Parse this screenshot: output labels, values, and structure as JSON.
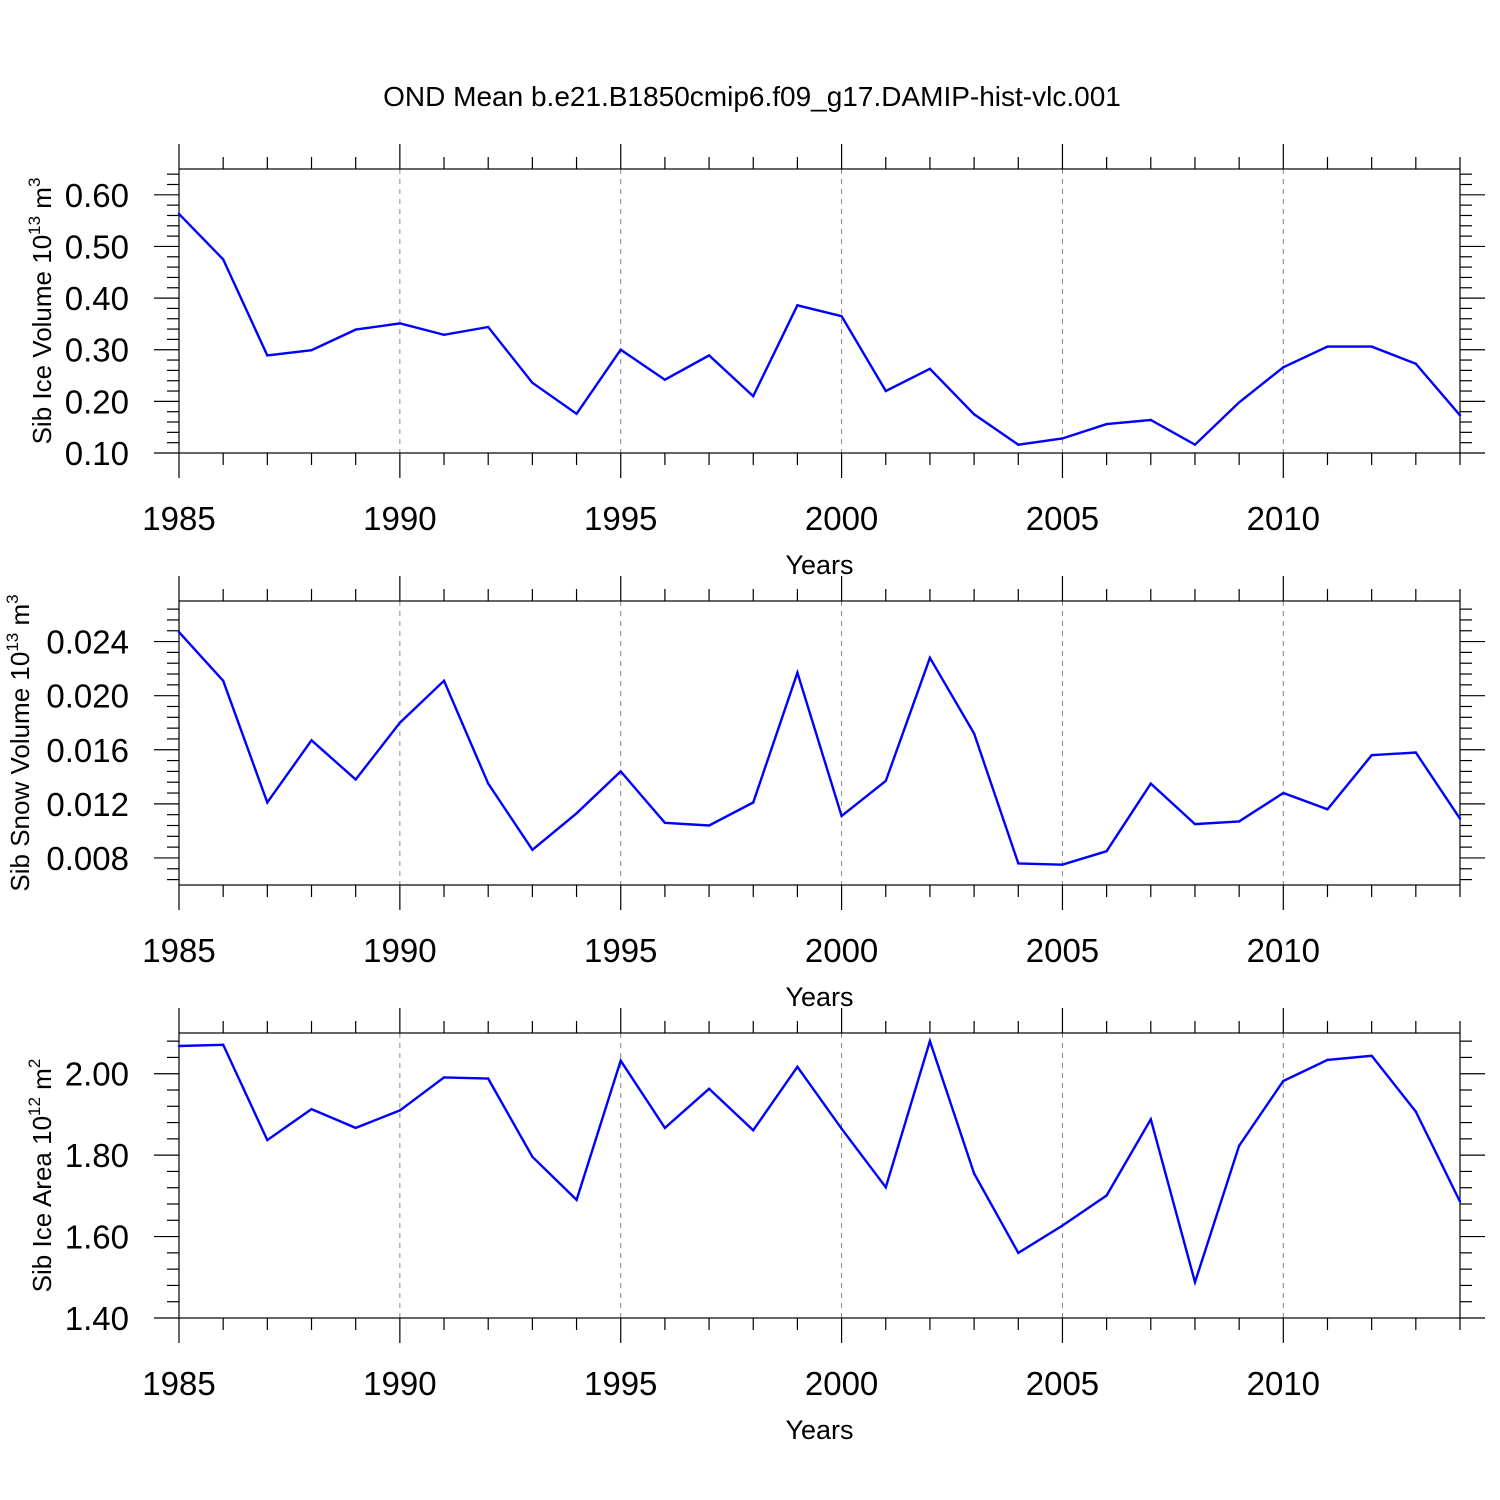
{
  "title": "OND Mean b.e21.B1850cmip6.f09_g17.DAMIP-hist-vlc.001",
  "colors": {
    "series": "#0000ff",
    "axis": "#000000",
    "grid": "#888888"
  },
  "chart_data": [
    {
      "type": "line",
      "title": "OND Mean b.e21.B1850cmip6.f09_g17.DAMIP-hist-vlc.001",
      "xlabel": "Years",
      "ylabel": "Sib Ice Volume 10",
      "ylabel_exp": "13",
      "ylabel_unit": " m",
      "ylabel_unit_exp": "3",
      "xlim": [
        1985,
        2014
      ],
      "ylim": [
        0.1,
        0.65
      ],
      "yticks": [
        0.1,
        0.2,
        0.3,
        0.4,
        0.5,
        0.6
      ],
      "yticklabels": [
        "0.10",
        "0.20",
        "0.30",
        "0.40",
        "0.50",
        "0.60"
      ],
      "xticks": [
        1985,
        1990,
        1995,
        2000,
        2005,
        2010
      ],
      "xticklabels": [
        "1985",
        "1990",
        "1995",
        "2000",
        "2005",
        "2010"
      ],
      "grid": "vertical dashed at major x ticks",
      "x": [
        1985,
        1986,
        1987,
        1988,
        1989,
        1990,
        1991,
        1992,
        1993,
        1994,
        1995,
        1996,
        1997,
        1998,
        1999,
        2000,
        2001,
        2002,
        2003,
        2004,
        2005,
        2006,
        2007,
        2008,
        2009,
        2010,
        2011,
        2012,
        2013,
        2014
      ],
      "series": [
        {
          "name": "Sib Ice Volume",
          "values": [
            0.563,
            0.475,
            0.289,
            0.299,
            0.339,
            0.351,
            0.329,
            0.344,
            0.236,
            0.176,
            0.3,
            0.242,
            0.289,
            0.21,
            0.386,
            0.365,
            0.22,
            0.263,
            0.175,
            0.116,
            0.128,
            0.156,
            0.164,
            0.116,
            0.198,
            0.266,
            0.306,
            0.306,
            0.273,
            0.173
          ]
        }
      ]
    },
    {
      "type": "line",
      "xlabel": "Years",
      "ylabel": "Sib Snow Volume 10",
      "ylabel_exp": "13",
      "ylabel_unit": " m",
      "ylabel_unit_exp": "3",
      "xlim": [
        1985,
        2014
      ],
      "ylim": [
        0.006,
        0.027
      ],
      "yticks": [
        0.008,
        0.012,
        0.016,
        0.02,
        0.024
      ],
      "yticklabels": [
        "0.008",
        "0.012",
        "0.016",
        "0.020",
        "0.024"
      ],
      "xticks": [
        1985,
        1990,
        1995,
        2000,
        2005,
        2010
      ],
      "xticklabels": [
        "1985",
        "1990",
        "1995",
        "2000",
        "2005",
        "2010"
      ],
      "grid": "vertical dashed at major x ticks",
      "x": [
        1985,
        1986,
        1987,
        1988,
        1989,
        1990,
        1991,
        1992,
        1993,
        1994,
        1995,
        1996,
        1997,
        1998,
        1999,
        2000,
        2001,
        2002,
        2003,
        2004,
        2005,
        2006,
        2007,
        2008,
        2009,
        2010,
        2011,
        2012,
        2013,
        2014
      ],
      "series": [
        {
          "name": "Sib Snow Volume",
          "values": [
            0.0247,
            0.0211,
            0.0121,
            0.0167,
            0.0138,
            0.018,
            0.0211,
            0.0135,
            0.0086,
            0.0113,
            0.0144,
            0.0106,
            0.0104,
            0.0121,
            0.0217,
            0.0111,
            0.0137,
            0.0228,
            0.0172,
            0.0076,
            0.0075,
            0.0085,
            0.0135,
            0.0105,
            0.0107,
            0.0128,
            0.0116,
            0.0156,
            0.0158,
            0.0109
          ]
        }
      ]
    },
    {
      "type": "line",
      "xlabel": "Years",
      "ylabel": "Sib Ice Area 10",
      "ylabel_exp": "12",
      "ylabel_unit": " m",
      "ylabel_unit_exp": "2",
      "xlim": [
        1985,
        2014
      ],
      "ylim": [
        1.4,
        2.1
      ],
      "yticks": [
        1.4,
        1.6,
        1.8,
        2.0
      ],
      "yticklabels": [
        "1.40",
        "1.60",
        "1.80",
        "2.00"
      ],
      "xticks": [
        1985,
        1990,
        1995,
        2000,
        2005,
        2010
      ],
      "xticklabels": [
        "1985",
        "1990",
        "1995",
        "2000",
        "2005",
        "2010"
      ],
      "grid": "vertical dashed at major x ticks",
      "x": [
        1985,
        1986,
        1987,
        1988,
        1989,
        1990,
        1991,
        1992,
        1993,
        1994,
        1995,
        1996,
        1997,
        1998,
        1999,
        2000,
        2001,
        2002,
        2003,
        2004,
        2005,
        2006,
        2007,
        2008,
        2009,
        2010,
        2011,
        2012,
        2013,
        2014
      ],
      "series": [
        {
          "name": "Sib Ice Area",
          "values": [
            2.068,
            2.071,
            1.837,
            1.913,
            1.867,
            1.91,
            1.991,
            1.988,
            1.796,
            1.69,
            2.032,
            1.867,
            1.963,
            1.861,
            2.017,
            1.865,
            1.721,
            2.08,
            1.755,
            1.56,
            1.627,
            1.701,
            1.888,
            1.488,
            1.823,
            1.982,
            2.034,
            2.044,
            1.907,
            1.686
          ]
        }
      ]
    }
  ]
}
